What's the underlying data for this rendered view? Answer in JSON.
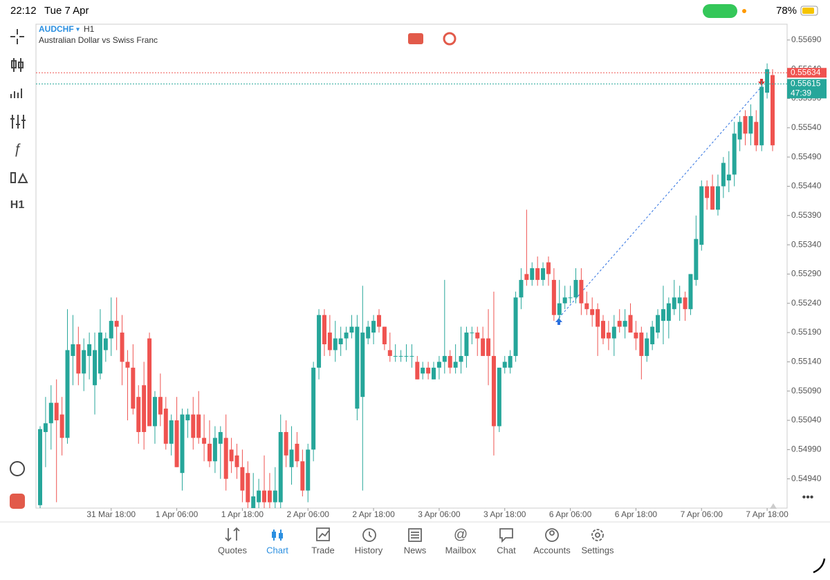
{
  "status_bar": {
    "time": "22:12",
    "date": "Tue 7 Apr",
    "battery": "78%"
  },
  "toolbar": {
    "timeframe": "H1"
  },
  "chart_data": {
    "type": "candlestick",
    "symbol": "AUDCHF",
    "timeframe": "H1",
    "description": "Australian Dollar vs Swiss Franc",
    "categories": [
      null,
      null,
      null,
      null,
      null,
      null,
      null,
      null,
      null,
      null,
      null,
      null,
      null,
      "31 Mar 18:00",
      null,
      null,
      null,
      null,
      null,
      null,
      null,
      null,
      null,
      null,
      null,
      "1 Apr 06:00",
      null,
      null,
      null,
      null,
      null,
      null,
      null,
      null,
      null,
      null,
      null,
      "1 Apr 18:00",
      null,
      null,
      null,
      null,
      null,
      null,
      null,
      null,
      null,
      null,
      null,
      "2 Apr 06:00",
      null,
      null,
      null,
      null,
      null,
      null,
      null,
      null,
      null,
      null,
      null,
      "2 Apr 18:00",
      null,
      null,
      null,
      null,
      null,
      null,
      null,
      null,
      null,
      null,
      null,
      "3 Apr 06:00",
      null,
      null,
      null,
      null,
      null,
      null,
      null,
      null,
      null,
      null,
      null,
      "3 Apr 18:00",
      null,
      null,
      null,
      null,
      null,
      null,
      null,
      null,
      null,
      null,
      null,
      "6 Apr 06:00",
      null,
      null,
      null,
      null,
      null,
      null,
      null,
      null,
      null,
      null,
      null,
      "6 Apr 18:00",
      null,
      null,
      null,
      null,
      null,
      null,
      null,
      null,
      null,
      null,
      null,
      "7 Apr 06:00",
      null,
      null,
      null,
      null,
      null,
      null,
      null,
      null,
      null,
      null,
      null,
      "7 Apr 18:00",
      null
    ],
    "open": [
      0.54895,
      0.5502,
      0.55035,
      0.5507,
      0.5505,
      0.5501,
      0.5515,
      0.5517,
      0.5512,
      0.5515,
      0.551,
      0.5512,
      0.5516,
      0.5518,
      0.5521,
      0.5519,
      0.5514,
      0.5513,
      0.5508,
      0.551,
      0.5518,
      0.5503,
      0.5508,
      0.5506,
      0.55,
      0.5504,
      0.5495,
      0.5504,
      0.5505,
      0.5505,
      0.5501,
      0.55,
      0.5497,
      0.55,
      0.5501,
      0.5499,
      0.5498,
      0.5496,
      0.5495,
      0.5489,
      0.549,
      0.5492,
      0.5492,
      0.549,
      0.549,
      0.5502,
      0.5496,
      0.55,
      0.5497,
      0.5492,
      0.5499,
      0.5513,
      0.5522,
      0.5519,
      0.5516,
      0.5517,
      0.5518,
      0.5519,
      0.5506,
      0.5508,
      0.5518,
      0.5519,
      0.5522,
      0.552,
      0.5516,
      0.5515,
      0.5515,
      0.5515,
      0.5515,
      0.5514,
      0.5512,
      0.5513,
      0.5511,
      0.5513,
      0.5514,
      0.5515,
      0.5513,
      0.5514,
      0.5515,
      0.5519,
      0.5519,
      0.5518,
      0.5518,
      0.5515,
      0.5503,
      0.5513,
      0.5513,
      0.5515,
      0.5525,
      0.5529,
      0.5528,
      0.553,
      0.5528,
      0.5531,
      0.5528,
      0.5522,
      0.5524,
      0.5525,
      0.5525,
      0.5528,
      0.5524,
      0.5523,
      0.5523,
      0.5521,
      0.5519,
      0.5518,
      0.5521,
      0.552,
      0.5522,
      0.5519,
      0.5519,
      0.5515,
      0.5517,
      0.5519,
      0.5521,
      0.5521,
      0.5523,
      0.5524,
      0.5525,
      0.5523,
      0.5528,
      0.5534,
      0.5544,
      0.5544,
      0.554,
      0.5544,
      0.5545,
      0.5546,
      0.5552,
      0.5556,
      0.5553,
      0.5555,
      0.5551,
      0.556,
      0.5563
    ],
    "high": [
      0.5503,
      0.5508,
      0.551,
      0.5511,
      0.5508,
      0.5523,
      0.5522,
      0.552,
      0.5518,
      0.5519,
      0.5519,
      0.5523,
      0.5519,
      0.5525,
      0.5525,
      0.5522,
      0.5516,
      0.5517,
      0.551,
      0.5514,
      0.5519,
      0.5509,
      0.5512,
      0.5508,
      0.5505,
      0.5508,
      0.5506,
      0.5506,
      0.5508,
      0.5509,
      0.5505,
      0.5504,
      0.5503,
      0.5503,
      0.5505,
      0.5501,
      0.55,
      0.5499,
      0.5497,
      0.5495,
      0.5494,
      0.5498,
      0.5495,
      0.5496,
      0.5505,
      0.5504,
      0.5503,
      0.5502,
      0.5499,
      0.55,
      0.5514,
      0.5523,
      0.5523,
      0.5522,
      0.5521,
      0.552,
      0.552,
      0.5522,
      0.5522,
      0.5527,
      0.5521,
      0.5522,
      0.5523,
      0.552,
      0.5519,
      0.5517,
      0.5516,
      0.5517,
      0.5517,
      0.5515,
      0.5514,
      0.5514,
      0.5514,
      0.5515,
      0.5528,
      0.5516,
      0.5517,
      0.552,
      0.552,
      0.552,
      0.552,
      0.552,
      0.5523,
      0.5526,
      0.5513,
      0.5515,
      0.5516,
      0.5526,
      0.553,
      0.554,
      0.5531,
      0.5532,
      0.5531,
      0.5532,
      0.553,
      0.5528,
      0.5527,
      0.5527,
      0.553,
      0.553,
      0.5526,
      0.5525,
      0.5524,
      0.5522,
      0.5521,
      0.5522,
      0.5523,
      0.5523,
      0.5524,
      0.5521,
      0.552,
      0.5519,
      0.5521,
      0.5523,
      0.5527,
      0.5525,
      0.5528,
      0.5527,
      0.5526,
      0.5529,
      0.5539,
      0.5545,
      0.5545,
      0.5546,
      0.5546,
      0.5549,
      0.555,
      0.5555,
      0.5556,
      0.5557,
      0.5558,
      0.5557,
      0.5562,
      0.5565,
      0.5564
    ],
    "low": [
      0.5489,
      0.5496,
      0.5499,
      0.549,
      0.5498,
      0.55,
      0.551,
      0.551,
      0.5509,
      0.5511,
      0.5505,
      0.5511,
      0.5514,
      0.5515,
      0.5516,
      0.551,
      0.5504,
      0.5505,
      0.55,
      0.5499,
      0.5503,
      0.55,
      0.5503,
      0.5499,
      0.5498,
      0.5496,
      0.5492,
      0.5501,
      0.5499,
      0.55,
      0.5497,
      0.5496,
      0.5495,
      0.5494,
      0.5492,
      0.5495,
      0.5494,
      0.549,
      0.5489,
      0.5489,
      0.5489,
      0.5489,
      0.5489,
      0.5489,
      0.5489,
      0.5496,
      0.5493,
      0.5496,
      0.5491,
      0.549,
      0.5497,
      0.5511,
      0.5515,
      0.5515,
      0.5514,
      0.5515,
      0.5516,
      0.5518,
      0.5504,
      0.5492,
      0.5517,
      0.5517,
      0.5519,
      0.5516,
      0.5514,
      0.5514,
      0.5514,
      0.5514,
      0.5513,
      0.5511,
      0.5511,
      0.5511,
      0.5511,
      0.5511,
      0.5512,
      0.5512,
      0.5512,
      0.5512,
      0.5513,
      0.5517,
      0.5515,
      0.5515,
      0.551,
      0.5498,
      0.5502,
      0.5512,
      0.5512,
      0.5514,
      0.5523,
      0.5527,
      0.5527,
      0.5527,
      0.5527,
      0.5527,
      0.5521,
      0.5521,
      0.5523,
      0.5524,
      0.5524,
      0.5522,
      0.5522,
      0.552,
      0.5515,
      0.5517,
      0.5516,
      0.5515,
      0.5519,
      0.5518,
      0.5519,
      0.5516,
      0.5511,
      0.5514,
      0.5516,
      0.5518,
      0.5517,
      0.5518,
      0.5522,
      0.5521,
      0.5521,
      0.5522,
      0.5527,
      0.5533,
      0.554,
      0.554,
      0.5539,
      0.5542,
      0.5543,
      0.5544,
      0.555,
      0.5551,
      0.5551,
      0.555,
      0.555,
      0.5559,
      0.555
    ],
    "close": [
      0.55025,
      0.55035,
      0.5507,
      0.5504,
      0.5501,
      0.5516,
      0.5517,
      0.5512,
      0.5516,
      0.5517,
      0.5516,
      0.5519,
      0.5518,
      0.5521,
      0.552,
      0.5514,
      0.5513,
      0.5506,
      0.5502,
      0.5502,
      0.5503,
      0.5508,
      0.5505,
      0.55,
      0.5504,
      0.5496,
      0.5505,
      0.5505,
      0.5501,
      0.5501,
      0.55,
      0.5497,
      0.5501,
      0.5502,
      0.5494,
      0.5497,
      0.5496,
      0.5492,
      0.549,
      0.5491,
      0.5492,
      0.549,
      0.549,
      0.5492,
      0.5502,
      0.5498,
      0.5499,
      0.5497,
      0.5492,
      0.5499,
      0.5513,
      0.5522,
      0.5517,
      0.5516,
      0.5518,
      0.5518,
      0.5519,
      0.552,
      0.552,
      0.5519,
      0.552,
      0.5521,
      0.552,
      0.5517,
      0.5515,
      0.5515,
      0.5515,
      0.5515,
      0.5515,
      0.5511,
      0.5513,
      0.5512,
      0.5513,
      0.5514,
      0.5515,
      0.5513,
      0.5514,
      0.5515,
      0.5519,
      0.5519,
      0.5518,
      0.5515,
      0.5515,
      0.5503,
      0.5513,
      0.5514,
      0.5515,
      0.5525,
      0.5528,
      0.5528,
      0.553,
      0.5528,
      0.553,
      0.5529,
      0.5522,
      0.5524,
      0.5525,
      0.5525,
      0.5528,
      0.5524,
      0.5523,
      0.5522,
      0.552,
      0.5518,
      0.5518,
      0.552,
      0.552,
      0.5521,
      0.5519,
      0.5518,
      0.5515,
      0.5518,
      0.552,
      0.5522,
      0.5523,
      0.5524,
      0.5525,
      0.5525,
      0.5523,
      0.5529,
      0.5535,
      0.5544,
      0.5542,
      0.554,
      0.5544,
      0.5548,
      0.5546,
      0.5553,
      0.5555,
      0.5553,
      0.5556,
      0.5551,
      0.5561,
      0.5564,
      0.5551
    ],
    "up_color": "#26a69a",
    "down_color": "#ef5350",
    "ylim": [
      0.5489,
      0.55717
    ],
    "yticks": [
      {
        "value": 0.5569,
        "label": "0.55690"
      },
      {
        "value": 0.5564,
        "label": "0.55640"
      },
      {
        "value": 0.5559,
        "label": "0.55590"
      },
      {
        "value": 0.5554,
        "label": "0.55540"
      },
      {
        "value": 0.5549,
        "label": "0.55490"
      },
      {
        "value": 0.5544,
        "label": "0.55440"
      },
      {
        "value": 0.5539,
        "label": "0.55390"
      },
      {
        "value": 0.5534,
        "label": "0.55340"
      },
      {
        "value": 0.5529,
        "label": "0.55290"
      },
      {
        "value": 0.5524,
        "label": "0.55240"
      },
      {
        "value": 0.5519,
        "label": "0.55190"
      },
      {
        "value": 0.5514,
        "label": "0.55140"
      },
      {
        "value": 0.5509,
        "label": "0.55090"
      },
      {
        "value": 0.5504,
        "label": "0.55040"
      },
      {
        "value": 0.5499,
        "label": "0.54990"
      },
      {
        "value": 0.5494,
        "label": "0.54940"
      }
    ],
    "ask": 0.55634,
    "ask_color": "#ef5350",
    "bid": 0.55615,
    "bid_color": "#26a69a",
    "countdown": "47:39"
  },
  "tabs": [
    "Quotes",
    "Chart",
    "Trade",
    "History",
    "News",
    "Mailbox",
    "Chat",
    "Accounts",
    "Settings"
  ]
}
